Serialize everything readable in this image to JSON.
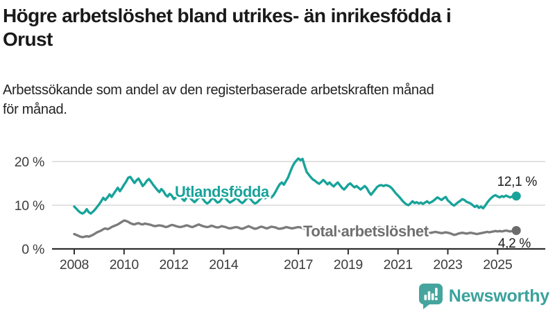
{
  "header": {
    "title": "Högre arbetslöshet bland utrikes- än inrikesfödda i Orust",
    "title_lines": [
      "Högre arbetslöshet bland utrikes- än inrikesfödda i",
      "Orust"
    ],
    "subtitle": "Arbetssökande som andel av den registerbaserade arbetskraften månad för månad.",
    "subtitle_lines": [
      "Arbetssökande som andel av den registerbaserade arbetskraften månad",
      "för månad."
    ]
  },
  "chart_data": {
    "type": "line",
    "unit": "%",
    "x_start_year": 2008,
    "x_step_months": 1,
    "x_end": "2025-10",
    "ylim": [
      0,
      22
    ],
    "grid": "horizontal",
    "legend_position": "inline-labels",
    "yticks": [
      {
        "value": 0,
        "label": "0 %"
      },
      {
        "value": 10,
        "label": "10 %"
      },
      {
        "value": 20,
        "label": "20 %"
      }
    ],
    "xticks": [
      {
        "year": 2008,
        "label": "2008"
      },
      {
        "year": 2010,
        "label": "2010"
      },
      {
        "year": 2012,
        "label": "2012"
      },
      {
        "year": 2014,
        "label": "2014"
      },
      {
        "year": 2017,
        "label": "2017"
      },
      {
        "year": 2019,
        "label": "2019"
      },
      {
        "year": 2021,
        "label": "2021"
      },
      {
        "year": 2023,
        "label": "2023"
      },
      {
        "year": 2025,
        "label": "2025"
      }
    ],
    "series": [
      {
        "name": "Total arbetslöshet",
        "inline_label": "Total arbetslöshet",
        "color": "#7b7b7b",
        "label_color": "#6f6f6f",
        "dot_color": "#6b6b6b",
        "end_label": "4,2 %",
        "end_value": 4.2,
        "values": [
          3.4,
          3.2,
          3.0,
          2.8,
          2.7,
          2.8,
          2.9,
          2.8,
          3.0,
          3.2,
          3.5,
          3.8,
          4.0,
          4.2,
          4.5,
          4.7,
          4.5,
          4.7,
          5.0,
          5.2,
          5.4,
          5.6,
          5.9,
          6.2,
          6.5,
          6.4,
          6.2,
          5.9,
          5.7,
          5.6,
          5.8,
          5.9,
          5.7,
          5.6,
          5.8,
          5.7,
          5.6,
          5.5,
          5.3,
          5.2,
          5.3,
          5.4,
          5.3,
          5.2,
          5.0,
          5.1,
          5.3,
          5.5,
          5.4,
          5.2,
          5.1,
          5.0,
          5.1,
          5.2,
          5.4,
          5.3,
          5.1,
          5.0,
          5.2,
          5.4,
          5.6,
          5.4,
          5.2,
          5.1,
          5.0,
          5.1,
          5.3,
          5.2,
          5.0,
          4.9,
          5.0,
          5.2,
          5.1,
          5.0,
          4.8,
          4.7,
          4.8,
          4.9,
          5.0,
          4.9,
          4.7,
          4.6,
          4.8,
          5.0,
          5.2,
          5.0,
          4.8,
          4.6,
          4.7,
          4.9,
          5.1,
          5.0,
          4.8,
          4.7,
          4.9,
          5.1,
          5.0,
          4.9,
          4.7,
          4.6,
          4.7,
          4.8,
          5.0,
          4.9,
          4.8,
          4.7,
          4.8,
          4.9,
          5.0,
          4.9,
          4.8,
          4.6,
          4.5,
          4.4,
          4.5,
          4.6,
          4.4,
          4.3,
          4.2,
          4.3,
          4.4,
          4.3,
          4.1,
          4.0,
          4.1,
          4.2,
          4.3,
          4.2,
          4.0,
          3.9,
          4.0,
          4.2,
          4.3,
          4.4,
          4.3,
          4.2,
          4.3,
          4.4,
          4.5,
          4.4,
          4.3,
          4.2,
          4.3,
          4.5,
          4.6,
          4.7,
          4.9,
          5.0,
          4.9,
          4.8,
          4.9,
          4.8,
          4.7,
          4.6,
          4.5,
          4.4,
          4.3,
          4.2,
          4.1,
          4.0,
          3.9,
          3.8,
          3.9,
          4.0,
          3.9,
          3.8,
          3.7,
          3.8,
          3.9,
          3.8,
          3.7,
          3.6,
          3.7,
          3.8,
          3.9,
          3.8,
          3.7,
          3.6,
          3.7,
          3.8,
          3.7,
          3.6,
          3.4,
          3.2,
          3.3,
          3.5,
          3.6,
          3.7,
          3.6,
          3.5,
          3.6,
          3.7,
          3.6,
          3.5,
          3.4,
          3.5,
          3.6,
          3.7,
          3.8,
          3.9,
          3.8,
          3.9,
          4.0,
          4.1,
          4.0,
          4.1,
          4.0,
          4.1,
          4.2,
          4.1,
          4.0,
          4.1,
          4.2,
          4.2
        ]
      },
      {
        "name": "Utlandsfödda",
        "inline_label": "Utlandsfödda",
        "color": "#17a39a",
        "label_color": "#17a39a",
        "dot_color": "#17a39a",
        "end_label": "12,1 %",
        "end_value": 12.1,
        "values": [
          9.7,
          9.2,
          8.7,
          8.3,
          8.1,
          8.4,
          9.1,
          8.4,
          8.1,
          8.5,
          9.0,
          9.6,
          10.2,
          10.9,
          11.7,
          11.2,
          11.8,
          12.5,
          11.9,
          12.6,
          13.3,
          14.0,
          13.2,
          13.9,
          14.7,
          15.4,
          16.3,
          16.5,
          15.8,
          15.1,
          15.7,
          16.1,
          15.3,
          14.4,
          14.9,
          15.6,
          16.0,
          15.4,
          14.7,
          14.1,
          13.5,
          13.0,
          13.7,
          13.2,
          12.4,
          12.0,
          12.6,
          12.2,
          11.4,
          11.8,
          12.3,
          11.9,
          11.5,
          11.0,
          11.6,
          12.1,
          11.6,
          11.1,
          10.7,
          11.2,
          11.7,
          12.0,
          11.4,
          10.8,
          10.4,
          10.7,
          11.3,
          11.7,
          11.1,
          10.6,
          10.8,
          11.4,
          11.9,
          11.5,
          11.0,
          10.6,
          10.9,
          11.2,
          11.7,
          11.3,
          10.8,
          10.5,
          10.9,
          11.5,
          11.8,
          11.4,
          10.8,
          10.4,
          10.6,
          11.1,
          11.6,
          12.0,
          11.6,
          11.9,
          12.2,
          11.8,
          12.3,
          13.1,
          14.0,
          14.8,
          15.2,
          14.7,
          15.5,
          16.3,
          17.5,
          18.7,
          19.6,
          20.2,
          20.7,
          20.3,
          20.6,
          19.0,
          17.6,
          17.0,
          16.4,
          15.9,
          15.6,
          15.2,
          14.9,
          15.3,
          15.8,
          15.3,
          14.8,
          15.2,
          14.7,
          14.3,
          14.8,
          15.2,
          14.6,
          14.0,
          13.6,
          14.1,
          14.7,
          15.0,
          14.5,
          14.1,
          14.4,
          14.0,
          13.6,
          14.0,
          14.4,
          13.9,
          13.0,
          12.4,
          13.0,
          13.6,
          14.2,
          14.5,
          14.6,
          14.4,
          14.6,
          14.5,
          14.3,
          13.9,
          13.3,
          12.7,
          12.2,
          11.7,
          11.1,
          10.6,
          10.2,
          10.0,
          10.4,
          10.9,
          10.5,
          10.7,
          10.4,
          10.6,
          10.3,
          10.6,
          10.9,
          10.5,
          10.7,
          11.0,
          11.4,
          11.8,
          11.5,
          11.2,
          11.6,
          11.9,
          11.1,
          10.7,
          10.2,
          9.9,
          10.3,
          10.7,
          11.0,
          11.4,
          11.2,
          10.8,
          10.6,
          10.4,
          10.0,
          9.6,
          9.9,
          9.4,
          9.7,
          9.3,
          9.9,
          10.6,
          11.2,
          11.7,
          12.1,
          12.3,
          12.0,
          11.8,
          12.1,
          11.9,
          12.2,
          12.0,
          11.8,
          12.0,
          11.9,
          12.1
        ]
      }
    ],
    "axis_color": "#2f2f2f",
    "gridline_color": "#d9d9d9",
    "tick_label_color": "#3c3c3c",
    "value_label_color": "#1b1b1b"
  },
  "footer": {
    "brand": "Newsworthy",
    "brand_color": "#3aa29c",
    "icon": "newsworthy-chart-bubble-icon",
    "icon_color": "#45a59e"
  }
}
